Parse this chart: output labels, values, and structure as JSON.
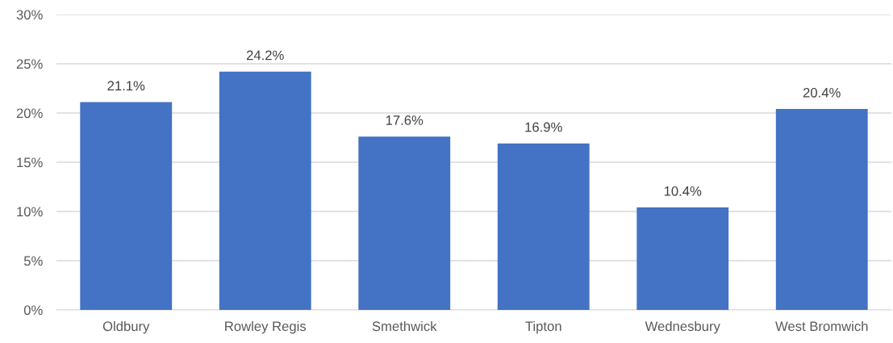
{
  "chart_data": {
    "type": "bar",
    "categories": [
      "Oldbury",
      "Rowley Regis",
      "Smethwick",
      "Tipton",
      "Wednesbury",
      "West Bromwich"
    ],
    "values": [
      21.1,
      24.2,
      17.6,
      16.9,
      10.4,
      20.4
    ],
    "color": "#4472c4",
    "value_labels": [
      "21.1%",
      "24.2%",
      "17.6%",
      "16.9%",
      "10.4%",
      "20.4%"
    ],
    "ylim": [
      0,
      30
    ],
    "yticks": [
      {
        "value": 0,
        "label": "0%"
      },
      {
        "value": 5,
        "label": "5%"
      },
      {
        "value": 10,
        "label": "10%"
      },
      {
        "value": 15,
        "label": "15%"
      },
      {
        "value": 20,
        "label": "20%"
      },
      {
        "value": 25,
        "label": "25%"
      },
      {
        "value": 30,
        "label": "30%"
      }
    ],
    "grid": "y"
  }
}
